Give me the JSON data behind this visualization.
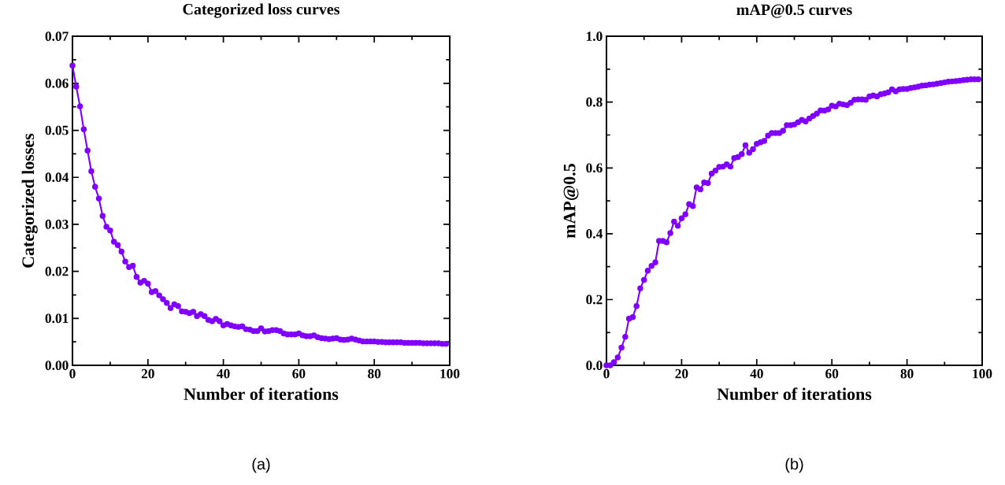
{
  "chart_data": [
    {
      "type": "line",
      "title": "Categorized loss curves",
      "xlabel": "Number of iterations",
      "ylabel": "Categorized losses",
      "marker": "circle",
      "line_style": "solid",
      "xlim": [
        0,
        100
      ],
      "ylim": [
        0,
        0.07
      ],
      "xticks": [
        0,
        {
          "value": 10,
          "label": null
        },
        20,
        {
          "value": 30,
          "label": null
        },
        40,
        {
          "value": 50,
          "label": null
        },
        60,
        {
          "value": 70,
          "label": null
        },
        80,
        {
          "value": 90,
          "label": null
        },
        100
      ],
      "yticks": [
        {
          "value": 0,
          "label": "0.00"
        },
        {
          "value": 0.005,
          "label": null
        },
        {
          "value": 0.01,
          "label": "0.01"
        },
        {
          "value": 0.015,
          "label": null
        },
        {
          "value": 0.02,
          "label": "0.02"
        },
        {
          "value": 0.025,
          "label": null
        },
        {
          "value": 0.03,
          "label": "0.03"
        },
        {
          "value": 0.035,
          "label": null
        },
        {
          "value": 0.04,
          "label": "0.04"
        },
        {
          "value": 0.045,
          "label": null
        },
        {
          "value": 0.05,
          "label": "0.05"
        },
        {
          "value": 0.055,
          "label": null
        },
        {
          "value": 0.06,
          "label": "0.06"
        },
        {
          "value": 0.065,
          "label": null
        },
        {
          "value": 0.07,
          "label": "0.07"
        }
      ],
      "x": [
        0,
        1,
        2,
        3,
        4,
        5,
        6,
        7,
        8,
        9,
        10,
        11,
        12,
        13,
        14,
        15,
        16,
        17,
        18,
        19,
        20,
        21,
        22,
        23,
        24,
        25,
        26,
        27,
        28,
        29,
        30,
        31,
        32,
        33,
        34,
        35,
        36,
        37,
        38,
        39,
        40,
        41,
        42,
        43,
        44,
        45,
        46,
        47,
        48,
        49,
        50,
        51,
        52,
        53,
        54,
        55,
        56,
        57,
        58,
        59,
        60,
        61,
        62,
        63,
        64,
        65,
        66,
        67,
        68,
        69,
        70,
        71,
        72,
        73,
        74,
        75,
        76,
        77,
        78,
        79,
        80,
        81,
        82,
        83,
        84,
        85,
        86,
        87,
        88,
        89,
        90,
        91,
        92,
        93,
        94,
        95,
        96,
        97,
        98,
        99
      ],
      "series": [
        {
          "color": "#8000ff",
          "values": [
            0.0638,
            0.0593,
            0.0551,
            0.0502,
            0.0457,
            0.0413,
            0.038,
            0.0355,
            0.0318,
            0.0295,
            0.0287,
            0.0263,
            0.0256,
            0.0242,
            0.0221,
            0.0209,
            0.0212,
            0.0188,
            0.0176,
            0.018,
            0.0174,
            0.0156,
            0.0158,
            0.0149,
            0.0141,
            0.0133,
            0.0122,
            0.013,
            0.0126,
            0.0115,
            0.0114,
            0.0111,
            0.0114,
            0.0105,
            0.0109,
            0.0105,
            0.0097,
            0.0094,
            0.0099,
            0.0094,
            0.0085,
            0.0088,
            0.0085,
            0.0083,
            0.0082,
            0.0083,
            0.0077,
            0.0076,
            0.0073,
            0.0073,
            0.0079,
            0.0072,
            0.0073,
            0.0075,
            0.0075,
            0.0073,
            0.0068,
            0.0066,
            0.0066,
            0.0066,
            0.0068,
            0.0064,
            0.0062,
            0.0062,
            0.0064,
            0.006,
            0.0058,
            0.0057,
            0.0056,
            0.0057,
            0.0058,
            0.0055,
            0.0054,
            0.0055,
            0.0057,
            0.0055,
            0.0053,
            0.0051,
            0.0051,
            0.0051,
            0.0051,
            0.005,
            0.005,
            0.0049,
            0.0049,
            0.0049,
            0.0049,
            0.0049,
            0.0048,
            0.0048,
            0.0048,
            0.0048,
            0.0048,
            0.0047,
            0.0047,
            0.0047,
            0.0047,
            0.0047,
            0.0046,
            0.0046
          ]
        }
      ],
      "annotations": [
        "(a)"
      ]
    },
    {
      "type": "line",
      "title": "mAP@0.5 curves",
      "xlabel": "Number of iterations",
      "ylabel": "mAP@0.5",
      "marker": "circle",
      "line_style": "solid",
      "xlim": [
        0,
        100
      ],
      "ylim": [
        0,
        1.0
      ],
      "xticks": [
        0,
        {
          "value": 10,
          "label": null
        },
        20,
        {
          "value": 30,
          "label": null
        },
        40,
        {
          "value": 50,
          "label": null
        },
        60,
        {
          "value": 70,
          "label": null
        },
        80,
        {
          "value": 90,
          "label": null
        },
        100
      ],
      "yticks": [
        {
          "value": 0,
          "label": "0.0"
        },
        {
          "value": 0.1,
          "label": null
        },
        {
          "value": 0.2,
          "label": "0.2"
        },
        {
          "value": 0.3,
          "label": null
        },
        {
          "value": 0.4,
          "label": "0.4"
        },
        {
          "value": 0.5,
          "label": null
        },
        {
          "value": 0.6,
          "label": "0.6"
        },
        {
          "value": 0.7,
          "label": null
        },
        {
          "value": 0.8,
          "label": "0.8"
        },
        {
          "value": 0.9,
          "label": null
        },
        {
          "value": 1.0,
          "label": "1.0"
        }
      ],
      "x": [
        0,
        1,
        2,
        3,
        4,
        5,
        6,
        7,
        8,
        9,
        10,
        11,
        12,
        13,
        14,
        15,
        16,
        17,
        18,
        19,
        20,
        21,
        22,
        23,
        24,
        25,
        26,
        27,
        28,
        29,
        30,
        31,
        32,
        33,
        34,
        35,
        36,
        37,
        38,
        39,
        40,
        41,
        42,
        43,
        44,
        45,
        46,
        47,
        48,
        49,
        50,
        51,
        52,
        53,
        54,
        55,
        56,
        57,
        58,
        59,
        60,
        61,
        62,
        63,
        64,
        65,
        66,
        67,
        68,
        69,
        70,
        71,
        72,
        73,
        74,
        75,
        76,
        77,
        78,
        79,
        80,
        81,
        82,
        83,
        84,
        85,
        86,
        87,
        88,
        89,
        90,
        91,
        92,
        93,
        94,
        95,
        96,
        97,
        98,
        99
      ],
      "series": [
        {
          "color": "#8000ff",
          "values": [
            0.0,
            0.0,
            0.01,
            0.024,
            0.054,
            0.087,
            0.142,
            0.147,
            0.18,
            0.234,
            0.26,
            0.288,
            0.302,
            0.313,
            0.378,
            0.378,
            0.374,
            0.402,
            0.437,
            0.424,
            0.447,
            0.459,
            0.49,
            0.484,
            0.541,
            0.535,
            0.556,
            0.554,
            0.583,
            0.592,
            0.603,
            0.604,
            0.611,
            0.604,
            0.63,
            0.633,
            0.642,
            0.669,
            0.646,
            0.657,
            0.673,
            0.678,
            0.682,
            0.698,
            0.706,
            0.706,
            0.706,
            0.713,
            0.73,
            0.73,
            0.732,
            0.739,
            0.746,
            0.741,
            0.75,
            0.758,
            0.765,
            0.775,
            0.774,
            0.778,
            0.789,
            0.787,
            0.795,
            0.793,
            0.791,
            0.798,
            0.807,
            0.808,
            0.808,
            0.807,
            0.817,
            0.82,
            0.817,
            0.824,
            0.826,
            0.83,
            0.839,
            0.833,
            0.839,
            0.84,
            0.84,
            0.843,
            0.845,
            0.847,
            0.85,
            0.851,
            0.853,
            0.854,
            0.856,
            0.858,
            0.86,
            0.862,
            0.863,
            0.864,
            0.865,
            0.867,
            0.868,
            0.869,
            0.869,
            0.869
          ]
        }
      ],
      "annotations": [
        "(b)"
      ]
    }
  ]
}
